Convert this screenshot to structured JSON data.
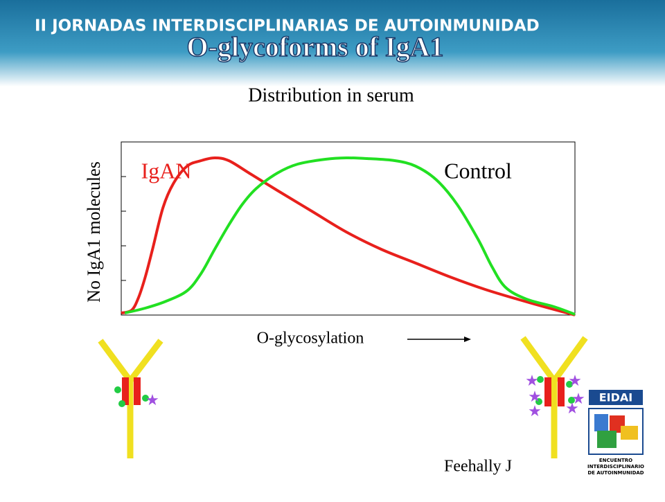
{
  "header": {
    "banner": "II JORNADAS INTERDISCIPLINARIAS DE AUTOINMUNIDAD",
    "credit": "Feehally J",
    "logo": {
      "name": "EIDAI",
      "lines": [
        "ENCUENTRO",
        "INTERDISCIPLINARIO",
        "DE AUTOINMUNIDAD"
      ]
    }
  },
  "chart_data": {
    "type": "line",
    "title": "O-glycoforms of IgA1",
    "subtitle": "Distribution in serum",
    "x_label": "O-glycosylation",
    "y_label": "No IgA1 molecules",
    "xlim": [
      0,
      100
    ],
    "ylim": [
      0,
      5
    ],
    "yticks": [
      1,
      2,
      3,
      4
    ],
    "series": [
      {
        "name": "IgAN",
        "color": "#e8201c",
        "x": [
          0,
          2.3,
          3.8,
          5.3,
          6.9,
          9.2,
          11.5,
          14.5,
          17.6,
          20.6,
          23.7,
          28.2,
          34.4,
          42,
          49.6,
          57.3,
          64.9,
          72.5,
          80.2,
          87.8,
          95.4,
          100
        ],
        "values": [
          0.06,
          0.14,
          0.5,
          1.1,
          1.9,
          3.1,
          3.8,
          4.3,
          4.46,
          4.54,
          4.46,
          4.1,
          3.6,
          3.0,
          2.4,
          1.9,
          1.5,
          1.1,
          0.74,
          0.44,
          0.16,
          0
        ]
      },
      {
        "name": "Control",
        "color": "#22e022",
        "x": [
          0.8,
          5.3,
          9.9,
          14.5,
          17.6,
          20.6,
          23.7,
          26.7,
          29.8,
          34.4,
          38.9,
          45,
          49.6,
          54.2,
          60.3,
          64.9,
          69.5,
          74,
          78.6,
          81.7,
          84.7,
          89.3,
          95.4,
          100
        ],
        "values": [
          0.06,
          0.2,
          0.4,
          0.7,
          1.2,
          1.9,
          2.6,
          3.2,
          3.66,
          4.1,
          4.36,
          4.5,
          4.54,
          4.52,
          4.46,
          4.3,
          3.9,
          3.2,
          2.2,
          1.4,
          0.8,
          0.46,
          0.24,
          0.02
        ]
      }
    ]
  }
}
